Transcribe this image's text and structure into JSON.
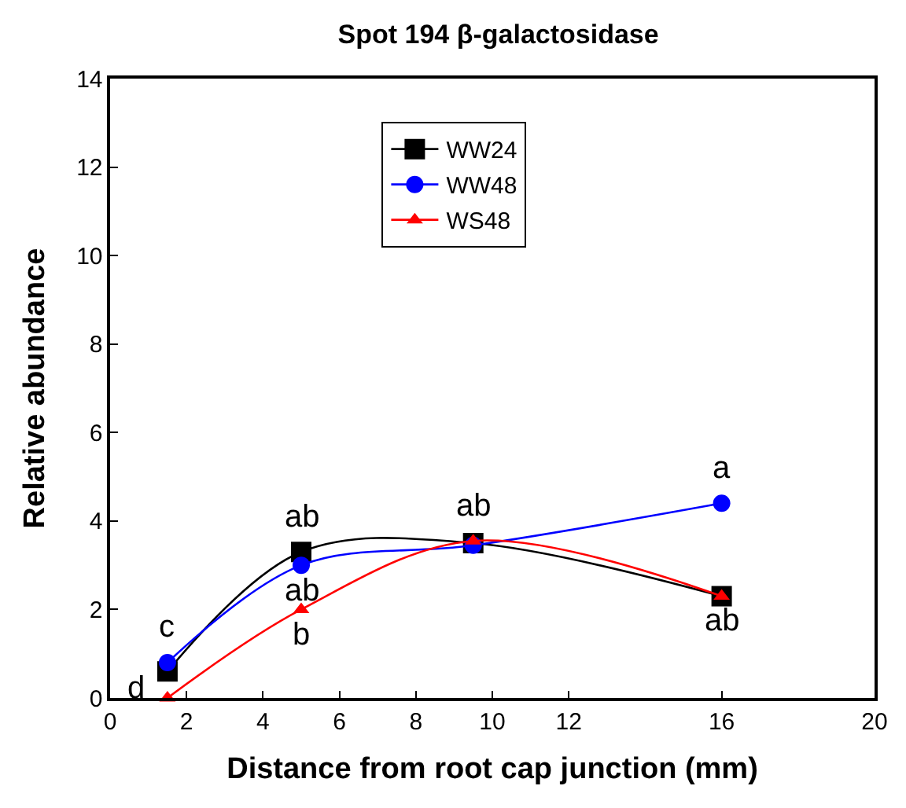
{
  "chart_data": {
    "type": "line",
    "title": "Spot 194 β-galactosidase",
    "xlabel": "Distance from root cap junction (mm)",
    "ylabel": "Relative abundance",
    "x": [
      1.5,
      5,
      9.5,
      16
    ],
    "series": [
      {
        "name": "WW24",
        "color": "#000000",
        "marker": "square",
        "values": [
          0.6,
          3.3,
          3.5,
          2.3
        ]
      },
      {
        "name": "WW48",
        "color": "#0000ff",
        "marker": "circle",
        "values": [
          0.8,
          3.0,
          3.45,
          4.4
        ]
      },
      {
        "name": "WS48",
        "color": "#ff0000",
        "marker": "triangle",
        "values": [
          0.0,
          2.0,
          3.55,
          2.3
        ]
      }
    ],
    "xlim": [
      0,
      20
    ],
    "xticks": [
      0,
      2,
      4,
      6,
      8,
      10,
      12,
      16,
      20
    ],
    "ylim": [
      0,
      14
    ],
    "yticks": [
      0,
      2,
      4,
      6,
      8,
      10,
      12,
      14
    ],
    "legend": "top",
    "line_style": "solid",
    "annotations": [
      {
        "text": "c",
        "x": 1.5,
        "y": 0.8
      },
      {
        "text": "d",
        "x": 1.5,
        "y": 0.0
      },
      {
        "text": "ab",
        "x": 5,
        "y": 3.3
      },
      {
        "text": "ab",
        "x": 5,
        "y": 3.0
      },
      {
        "text": "b",
        "x": 5,
        "y": 2.0
      },
      {
        "text": "ab",
        "x": 9.5,
        "y": 3.55
      },
      {
        "text": "a",
        "x": 16,
        "y": 4.4
      },
      {
        "text": "ab",
        "x": 16,
        "y": 2.3
      }
    ]
  }
}
